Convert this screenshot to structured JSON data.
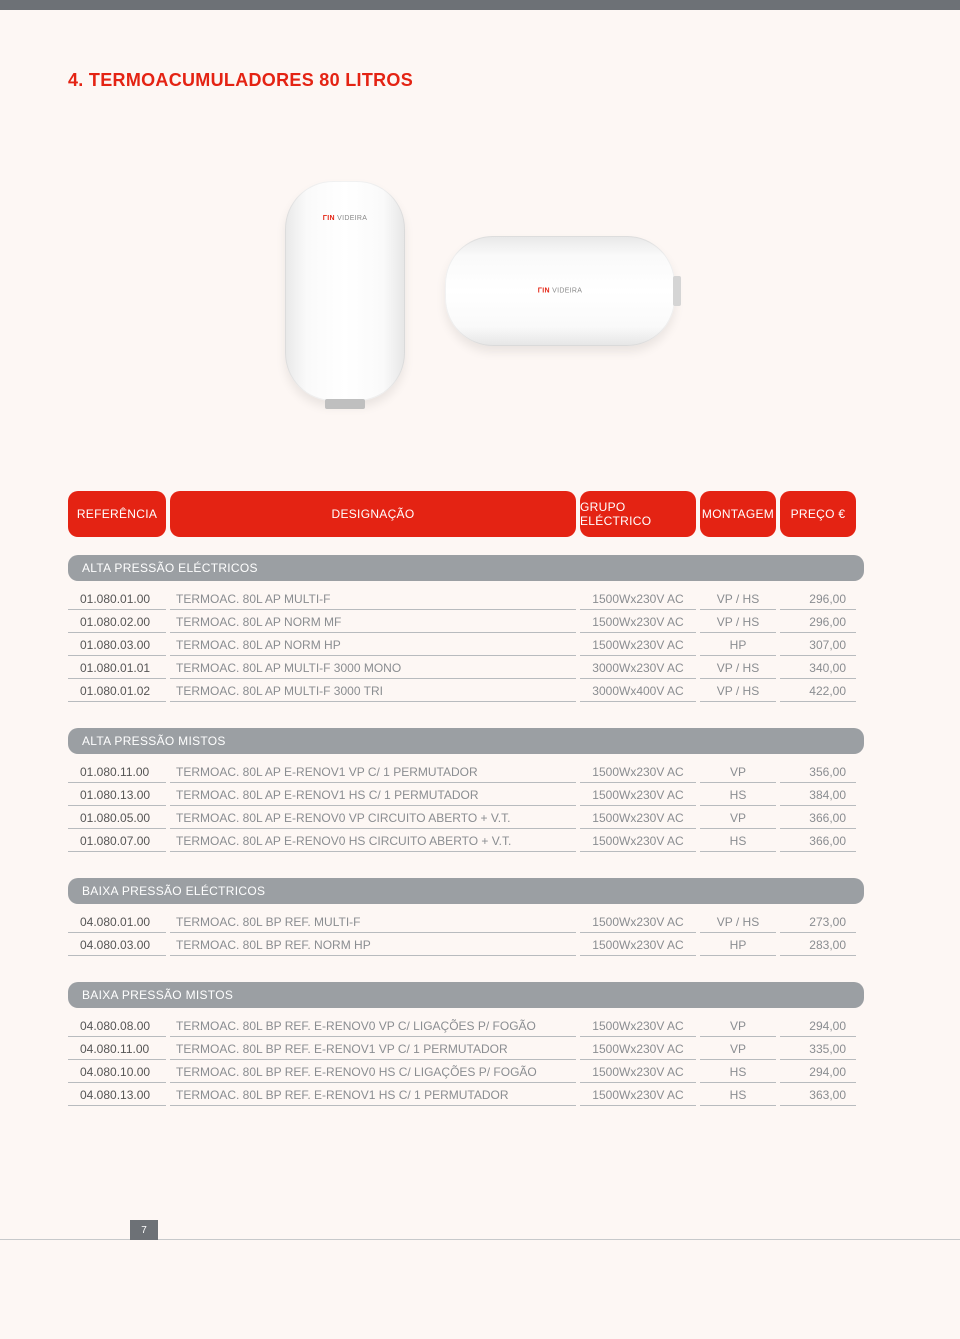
{
  "page_number": "7",
  "title": "4. TERMOACUMULADORES 80 LITROS",
  "brand_prefix": "ΓΙΝ",
  "brand_name": "VIDEIRA",
  "headers": {
    "referencia": "REFERÊNCIA",
    "designacao": "DESIGNAÇÃO",
    "grupo": "GRUPO ELÉCTRICO",
    "montagem": "MONTAGEM",
    "preco": "PREÇO €"
  },
  "sections": [
    {
      "title": "ALTA PRESSÃO ELÉCTRICOS",
      "rows": [
        {
          "ref": "01.080.01.00",
          "des": "TERMOAC. 80L AP MULTI-F",
          "grp": "1500Wx230V AC",
          "mon": "VP / HS",
          "prc": "296,00"
        },
        {
          "ref": "01.080.02.00",
          "des": "TERMOAC. 80L AP NORM MF",
          "grp": "1500Wx230V AC",
          "mon": "VP / HS",
          "prc": "296,00"
        },
        {
          "ref": "01.080.03.00",
          "des": "TERMOAC. 80L AP NORM HP",
          "grp": "1500Wx230V AC",
          "mon": "HP",
          "prc": "307,00"
        },
        {
          "ref": "01.080.01.01",
          "des": "TERMOAC. 80L AP MULTI-F 3000 MONO",
          "grp": "3000Wx230V AC",
          "mon": "VP / HS",
          "prc": "340,00"
        },
        {
          "ref": "01.080.01.02",
          "des": "TERMOAC. 80L AP MULTI-F 3000 TRI",
          "grp": "3000Wx400V AC",
          "mon": "VP / HS",
          "prc": "422,00"
        }
      ]
    },
    {
      "title": "ALTA PRESSÃO MISTOS",
      "rows": [
        {
          "ref": "01.080.11.00",
          "des": "TERMOAC. 80L AP E-RENOV1 VP C/ 1 PERMUTADOR",
          "grp": "1500Wx230V AC",
          "mon": "VP",
          "prc": "356,00"
        },
        {
          "ref": "01.080.13.00",
          "des": "TERMOAC. 80L AP E-RENOV1 HS C/ 1 PERMUTADOR",
          "grp": "1500Wx230V AC",
          "mon": "HS",
          "prc": "384,00"
        },
        {
          "ref": "01.080.05.00",
          "des": "TERMOAC. 80L AP E-RENOV0 VP CIRCUITO ABERTO + V.T.",
          "grp": "1500Wx230V AC",
          "mon": "VP",
          "prc": "366,00"
        },
        {
          "ref": "01.080.07.00",
          "des": "TERMOAC. 80L AP E-RENOV0 HS CIRCUITO ABERTO + V.T.",
          "grp": "1500Wx230V AC",
          "mon": "HS",
          "prc": "366,00"
        }
      ]
    },
    {
      "title": "BAIXA PRESSÃO ELÉCTRICOS",
      "rows": [
        {
          "ref": "04.080.01.00",
          "des": "TERMOAC. 80L BP REF. MULTI-F",
          "grp": "1500Wx230V AC",
          "mon": "VP / HS",
          "prc": "273,00"
        },
        {
          "ref": "04.080.03.00",
          "des": "TERMOAC. 80L BP REF. NORM HP",
          "grp": "1500Wx230V AC",
          "mon": "HP",
          "prc": "283,00"
        }
      ]
    },
    {
      "title": "BAIXA PRESSÃO MISTOS",
      "rows": [
        {
          "ref": "04.080.08.00",
          "des": "TERMOAC. 80L BP REF. E-RENOV0 VP C/ LIGAÇÕES P/ FOGÃO",
          "grp": "1500Wx230V AC",
          "mon": "VP",
          "prc": "294,00"
        },
        {
          "ref": "04.080.11.00",
          "des": "TERMOAC. 80L BP REF. E-RENOV1 VP C/ 1 PERMUTADOR",
          "grp": "1500Wx230V AC",
          "mon": "VP",
          "prc": "335,00"
        },
        {
          "ref": "04.080.10.00",
          "des": "TERMOAC. 80L BP REF. E-RENOV0 HS C/ LIGAÇÕES P/ FOGÃO",
          "grp": "1500Wx230V AC",
          "mon": "HS",
          "prc": "294,00"
        },
        {
          "ref": "04.080.13.00",
          "des": "TERMOAC. 80L BP REF. E-RENOV1 HS C/ 1 PERMUTADOR",
          "grp": "1500Wx230V AC",
          "mon": "HS",
          "prc": "363,00"
        }
      ]
    }
  ]
}
